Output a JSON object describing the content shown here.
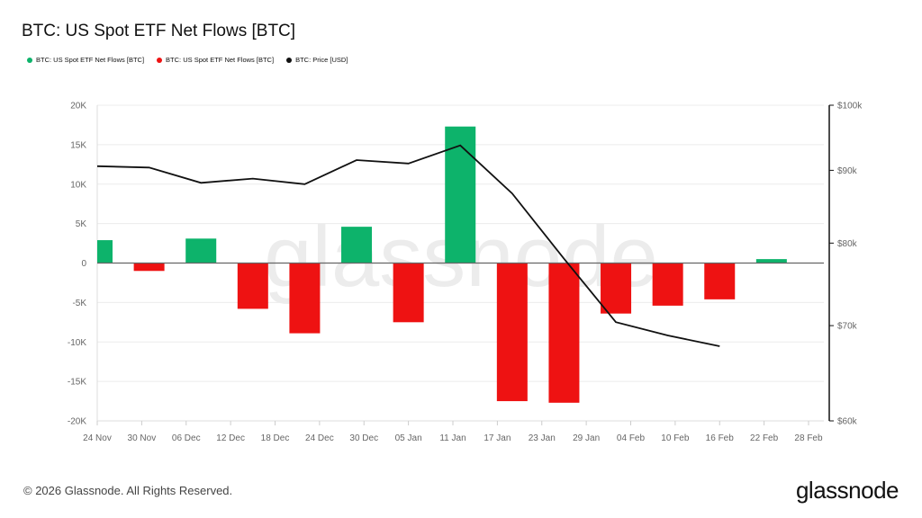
{
  "title": "BTC: US Spot ETF Net Flows [BTC]",
  "footer": "© 2026 Glassnode. All Rights Reserved.",
  "brand": "glassnode",
  "watermark": "glassnode",
  "chart_data": {
    "type": "bar",
    "legend_placement": "top-left",
    "grid": true,
    "legend": [
      {
        "label": "BTC: US Spot ETF Net Flows [BTC]",
        "color": "#0db36b"
      },
      {
        "label": "BTC: US Spot ETF Net Flows [BTC]",
        "color": "#ee1212"
      },
      {
        "label": "BTC: Price [USD]",
        "color": "#111111"
      }
    ],
    "x_ticks": [
      "24 Nov",
      "30 Nov",
      "06 Dec",
      "12 Dec",
      "18 Dec",
      "24 Dec",
      "30 Dec",
      "05 Jan",
      "11 Jan",
      "17 Jan",
      "23 Jan",
      "29 Jan",
      "04 Feb",
      "10 Feb",
      "16 Feb",
      "22 Feb",
      "28 Feb"
    ],
    "x_tick_dates": [
      "2025-11-24",
      "2025-11-30",
      "2025-12-06",
      "2025-12-12",
      "2025-12-18",
      "2025-12-24",
      "2025-12-30",
      "2026-01-05",
      "2026-01-11",
      "2026-01-17",
      "2026-01-23",
      "2026-01-29",
      "2026-02-04",
      "2026-02-10",
      "2026-02-16",
      "2026-02-22",
      "2026-02-28"
    ],
    "xlim": [
      "2025-11-24",
      "2026-02-28"
    ],
    "y_left": {
      "ticks": [
        "20K",
        "15K",
        "10K",
        "5K",
        "0",
        "-5K",
        "-10K",
        "-15K",
        "-20K"
      ],
      "tick_values": [
        20000,
        15000,
        10000,
        5000,
        0,
        -5000,
        -10000,
        -15000,
        -20000
      ],
      "ylim": [
        -20000,
        20000
      ]
    },
    "y_right": {
      "scale": "log",
      "ticks": [
        "$100k",
        "$90k",
        "$80k",
        "$70k",
        "$60k"
      ],
      "tick_values": [
        100000,
        90000,
        80000,
        70000,
        60000
      ],
      "ylim": [
        60000,
        100000
      ]
    },
    "dates": [
      "2025-11-24",
      "2025-12-01",
      "2025-12-08",
      "2025-12-15",
      "2025-12-22",
      "2025-12-29",
      "2026-01-05",
      "2026-01-12",
      "2026-01-19",
      "2026-01-26",
      "2026-02-02",
      "2026-02-09",
      "2026-02-16",
      "2026-02-23"
    ],
    "series": [
      {
        "axis": "left",
        "kind": "bar",
        "values": [
          2900,
          -1000,
          3100,
          -5800,
          -8900,
          4600,
          -7500,
          17300,
          -17500,
          -17700,
          -6400,
          -5400,
          -4600,
          500
        ]
      },
      {
        "axis": "right",
        "kind": "line",
        "values": [
          90600,
          90400,
          88200,
          88800,
          88000,
          91500,
          91000,
          93700,
          86700,
          78000,
          70400,
          68900,
          67700,
          null
        ]
      }
    ]
  }
}
